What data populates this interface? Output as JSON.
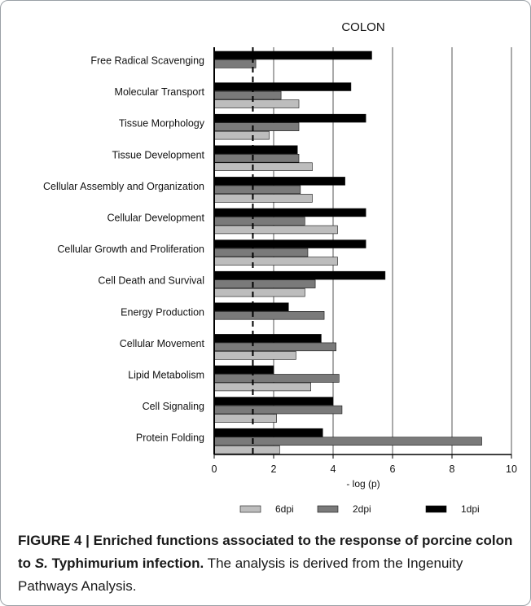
{
  "chart_data": {
    "type": "bar",
    "orientation": "horizontal",
    "title": "COLON",
    "xlabel": "- log (p)",
    "ylabel": "",
    "xlim": [
      0,
      10
    ],
    "x_ticks": [
      "0",
      "2",
      "4",
      "6",
      "8",
      "10"
    ],
    "threshold": 1.3,
    "categories": [
      "Free Radical Scavenging",
      "Molecular Transport",
      "Tissue Morphology",
      "Tissue Development",
      "Cellular Assembly and Organization",
      "Cellular Development",
      "Cellular Growth and Proliferation",
      "Cell Death and Survival",
      "Energy Production",
      "Cellular Movement",
      "Lipid Metabolism",
      "Cell Signaling",
      "Protein Folding"
    ],
    "series": [
      {
        "name": "1dpi",
        "color": "#000000",
        "values": [
          5.3,
          4.6,
          5.1,
          2.8,
          4.4,
          5.1,
          5.1,
          5.75,
          2.5,
          3.6,
          2.0,
          4.0,
          3.65
        ]
      },
      {
        "name": "2dpi",
        "color": "#7a7a7a",
        "values": [
          1.4,
          2.25,
          2.85,
          2.85,
          2.9,
          3.05,
          3.15,
          3.4,
          3.7,
          4.1,
          4.2,
          4.3,
          9.0
        ]
      },
      {
        "name": "6dpi",
        "color": "#bdbdbd",
        "values": [
          0,
          2.85,
          1.85,
          3.3,
          3.3,
          4.15,
          4.15,
          3.05,
          0,
          2.75,
          3.25,
          2.1,
          2.2
        ]
      }
    ],
    "legend": {
      "placement": "bottom",
      "order": [
        "6dpi",
        "2dpi",
        "1dpi"
      ]
    },
    "grid": true
  },
  "caption": {
    "bold_before": "FIGURE 4 | Enriched functions associated to the response of porcine colon to ",
    "bold_italic": "S.",
    "bold_after": " Typhimurium infection.",
    "normal": " The analysis is derived from the Ingenuity Pathways Analysis."
  }
}
